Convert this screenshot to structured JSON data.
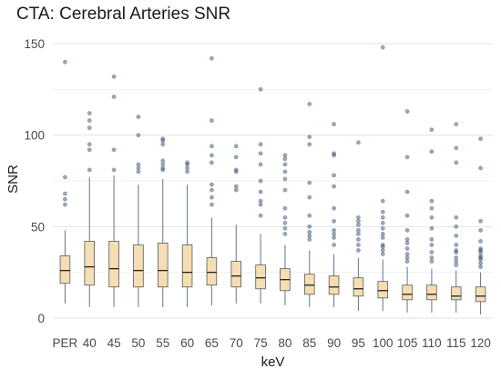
{
  "chart_data": {
    "type": "boxplot",
    "title": "CTA: Cerebral Arteries SNR",
    "xlabel": "keV",
    "ylabel": "SNR",
    "ylim": [
      -3,
      155
    ],
    "yticks": [
      0,
      50,
      100,
      150
    ],
    "grid": true,
    "legend": "none",
    "colors": {
      "box_fill": "#f5deb3",
      "box_stroke": "#5a5a5a",
      "whisker": "#5f7590",
      "outlier": "#3a4f6e",
      "grid": "#e2e2e2"
    },
    "categories": [
      "PER",
      "40",
      "45",
      "50",
      "55",
      "60",
      "65",
      "70",
      "75",
      "80",
      "85",
      "90",
      "95",
      "100",
      "105",
      "110",
      "115",
      "120"
    ],
    "boxes": [
      {
        "category": "PER",
        "min": 8,
        "q1": 19,
        "median": 26,
        "q3": 34,
        "max": 48,
        "outliers": [
          62,
          65,
          68,
          77,
          140
        ]
      },
      {
        "category": "40",
        "min": 6,
        "q1": 18,
        "median": 28,
        "q3": 42,
        "max": 77,
        "outliers": [
          81,
          92,
          95,
          104,
          108,
          112
        ]
      },
      {
        "category": "45",
        "min": 6,
        "q1": 17,
        "median": 27,
        "q3": 42,
        "max": 78,
        "outliers": [
          81,
          92,
          121,
          132
        ]
      },
      {
        "category": "50",
        "min": 6,
        "q1": 17,
        "median": 26,
        "q3": 40,
        "max": 73,
        "outliers": [
          80,
          82,
          84,
          100,
          110
        ]
      },
      {
        "category": "55",
        "min": 6,
        "q1": 17,
        "median": 26,
        "q3": 41,
        "max": 76,
        "outliers": [
          81,
          82,
          84,
          86,
          95,
          97,
          98
        ]
      },
      {
        "category": "60",
        "min": 6,
        "q1": 17,
        "median": 25,
        "q3": 40,
        "max": 73,
        "outliers": [
          80,
          82,
          84,
          85
        ]
      },
      {
        "category": "65",
        "min": 7,
        "q1": 18,
        "median": 25,
        "q3": 33,
        "max": 55,
        "outliers": [
          62,
          66,
          70,
          73,
          85,
          89,
          94,
          108,
          142
        ]
      },
      {
        "category": "70",
        "min": 8,
        "q1": 17,
        "median": 23,
        "q3": 31,
        "max": 51,
        "outliers": [
          70,
          72,
          80,
          81,
          88,
          94
        ]
      },
      {
        "category": "75",
        "min": 8,
        "q1": 16,
        "median": 22,
        "q3": 29,
        "max": 46,
        "outliers": [
          56,
          62,
          64,
          69,
          75,
          84,
          90,
          95,
          125
        ]
      },
      {
        "category": "80",
        "min": 7,
        "q1": 15,
        "median": 21,
        "q3": 27,
        "max": 40,
        "outliers": [
          46,
          49,
          52,
          55,
          60,
          70,
          76,
          80,
          84,
          87,
          89
        ]
      },
      {
        "category": "85",
        "min": 6,
        "q1": 13,
        "median": 18,
        "q3": 24,
        "max": 37,
        "outliers": [
          43,
          45,
          47,
          50,
          56,
          66,
          74,
          95,
          99,
          117
        ]
      },
      {
        "category": "90",
        "min": 6,
        "q1": 13,
        "median": 17,
        "q3": 23,
        "max": 35,
        "outliers": [
          40,
          44,
          46,
          48,
          53,
          60,
          72,
          78,
          89,
          90,
          106
        ]
      },
      {
        "category": "95",
        "min": 4,
        "q1": 12,
        "median": 16,
        "q3": 22,
        "max": 33,
        "outliers": [
          37,
          40,
          43,
          46,
          48,
          51,
          53,
          55,
          96
        ]
      },
      {
        "category": "100",
        "min": 4,
        "q1": 11,
        "median": 15,
        "q3": 20,
        "max": 32,
        "outliers": [
          35,
          37,
          39,
          40,
          44,
          46,
          49,
          52,
          55,
          58,
          64,
          148
        ]
      },
      {
        "category": "105",
        "min": 3,
        "q1": 10,
        "median": 13,
        "q3": 18,
        "max": 28,
        "outliers": [
          31,
          33,
          35,
          38,
          41,
          43,
          48,
          56,
          69,
          88,
          113
        ]
      },
      {
        "category": "110",
        "min": 3,
        "q1": 10,
        "median": 13,
        "q3": 18,
        "max": 27,
        "outliers": [
          31,
          33,
          36,
          40,
          43,
          49,
          55,
          60,
          64,
          91,
          103
        ]
      },
      {
        "category": "115",
        "min": 3,
        "q1": 10,
        "median": 12,
        "q3": 17,
        "max": 26,
        "outliers": [
          29,
          31,
          33,
          36,
          37,
          40,
          45,
          50,
          55,
          85,
          93,
          106
        ]
      },
      {
        "category": "120",
        "min": 2,
        "q1": 9,
        "median": 12,
        "q3": 17,
        "max": 25,
        "outliers": [
          28,
          30,
          32,
          33,
          34,
          36,
          37,
          38,
          42,
          48,
          53,
          82,
          98
        ]
      }
    ]
  }
}
